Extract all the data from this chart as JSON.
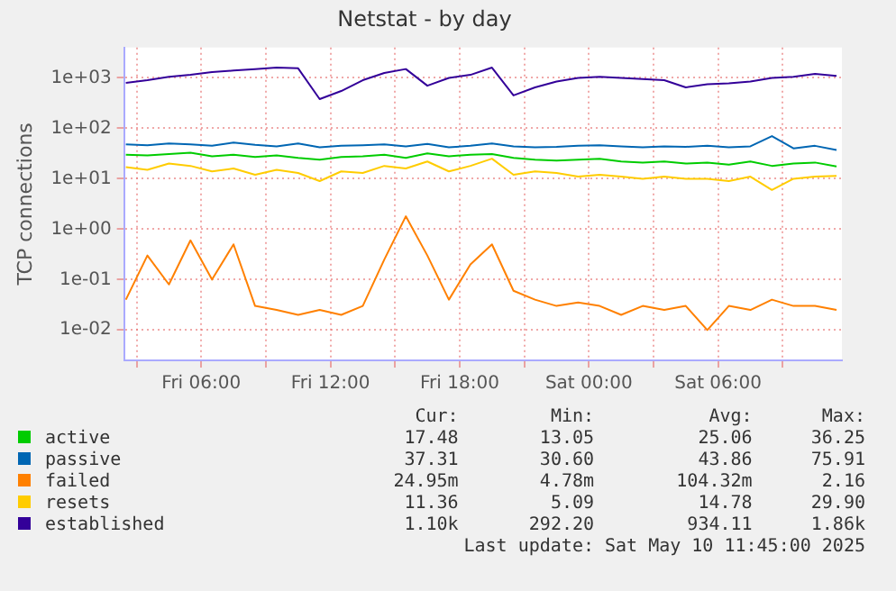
{
  "chart_data": {
    "type": "line",
    "title": "Netstat - by day",
    "ylabel": "TCP connections",
    "x": [
      "2025-05-09T02:30",
      "2025-05-09T03:30",
      "2025-05-09T04:30",
      "2025-05-09T05:30",
      "2025-05-09T06:30",
      "2025-05-09T07:30",
      "2025-05-09T08:30",
      "2025-05-09T09:30",
      "2025-05-09T10:30",
      "2025-05-09T11:30",
      "2025-05-09T12:30",
      "2025-05-09T13:30",
      "2025-05-09T14:30",
      "2025-05-09T15:30",
      "2025-05-09T16:30",
      "2025-05-09T17:30",
      "2025-05-09T18:30",
      "2025-05-09T19:30",
      "2025-05-09T20:30",
      "2025-05-09T21:30",
      "2025-05-09T22:30",
      "2025-05-09T23:30",
      "2025-05-10T00:30",
      "2025-05-10T01:30",
      "2025-05-10T02:30",
      "2025-05-10T03:30",
      "2025-05-10T04:30",
      "2025-05-10T05:30",
      "2025-05-10T06:30",
      "2025-05-10T07:30",
      "2025-05-10T08:30",
      "2025-05-10T09:30",
      "2025-05-10T10:30",
      "2025-05-10T11:30"
    ],
    "series": [
      {
        "name": "active",
        "color": "#00cc00",
        "values": [
          30,
          29,
          31,
          33,
          28,
          30,
          27,
          29,
          26,
          24,
          27,
          28,
          30,
          26,
          32,
          28,
          30,
          31,
          26,
          24,
          23,
          24,
          25,
          22,
          21,
          22,
          20,
          21,
          19,
          22,
          18,
          20,
          21,
          17.48
        ]
      },
      {
        "name": "passive",
        "color": "#0066b3",
        "values": [
          48,
          46,
          50,
          48,
          45,
          52,
          47,
          44,
          50,
          42,
          45,
          46,
          48,
          44,
          49,
          42,
          45,
          50,
          44,
          42,
          43,
          45,
          46,
          44,
          42,
          44,
          43,
          45,
          42,
          44,
          70,
          40,
          45,
          37.31
        ]
      },
      {
        "name": "failed",
        "color": "#ff8000",
        "values": [
          0.04,
          0.3,
          0.08,
          0.6,
          0.1,
          0.5,
          0.03,
          0.025,
          0.02,
          0.025,
          0.02,
          0.03,
          0.25,
          1.8,
          0.3,
          0.04,
          0.2,
          0.5,
          0.06,
          0.04,
          0.03,
          0.035,
          0.03,
          0.02,
          0.03,
          0.025,
          0.03,
          0.01,
          0.03,
          0.025,
          0.04,
          0.03,
          0.03,
          0.025
        ]
      },
      {
        "name": "resets",
        "color": "#ffcc00",
        "values": [
          17,
          15,
          20,
          18,
          14,
          16,
          12,
          15,
          13,
          9,
          14,
          13,
          18,
          16,
          22,
          14,
          18,
          25,
          12,
          14,
          13,
          11,
          12,
          11,
          10,
          11,
          10,
          10,
          9,
          11,
          6,
          10,
          11,
          11.36
        ]
      },
      {
        "name": "established",
        "color": "#330099",
        "values": [
          800,
          900,
          1050,
          1150,
          1300,
          1400,
          1500,
          1600,
          1550,
          380,
          550,
          900,
          1250,
          1500,
          700,
          1000,
          1150,
          1600,
          450,
          650,
          850,
          1000,
          1050,
          1000,
          950,
          900,
          650,
          750,
          780,
          850,
          1000,
          1050,
          1200,
          1100
        ]
      }
    ],
    "xlim": [
      "2025-05-09T02:25",
      "2025-05-10T11:45"
    ],
    "xticks": [
      {
        "value": "2025-05-09T03:00",
        "label": null
      },
      {
        "value": "2025-05-09T06:00",
        "label": "Fri 06:00"
      },
      {
        "value": "2025-05-09T09:00",
        "label": null
      },
      {
        "value": "2025-05-09T12:00",
        "label": "Fri 12:00"
      },
      {
        "value": "2025-05-09T15:00",
        "label": null
      },
      {
        "value": "2025-05-09T18:00",
        "label": "Fri 18:00"
      },
      {
        "value": "2025-05-09T21:00",
        "label": null
      },
      {
        "value": "2025-05-10T00:00",
        "label": "Sat 00:00"
      },
      {
        "value": "2025-05-10T03:00",
        "label": null
      },
      {
        "value": "2025-05-10T06:00",
        "label": "Sat 06:00"
      },
      {
        "value": "2025-05-10T09:00",
        "label": null
      }
    ],
    "ylim": [
      0.0025,
      4000
    ],
    "yticks": [
      {
        "value": 0.01,
        "label": "1e-02"
      },
      {
        "value": 0.1,
        "label": "1e-01"
      },
      {
        "value": 1,
        "label": "1e+00"
      },
      {
        "value": 10,
        "label": "1e+01"
      },
      {
        "value": 100,
        "label": "1e+02"
      },
      {
        "value": 1000,
        "label": "1e+03"
      }
    ],
    "log": "y",
    "grid": true,
    "legend": "bottom",
    "marker": "none",
    "line_style": "solid",
    "annotations": [
      "Cur:",
      "Min:",
      "Avg:",
      "Max:",
      "17.48",
      "13.05",
      "25.06",
      "36.25",
      "37.31",
      "30.60",
      "43.86",
      "75.91",
      "24.95m",
      "4.78m",
      "104.32m",
      "2.16",
      "11.36",
      "5.09",
      "14.78",
      "29.90",
      "1.10k",
      "292.20",
      "934.11",
      "1.86k",
      "Last update: Sat May 10 11:45:00 2025"
    ]
  }
}
